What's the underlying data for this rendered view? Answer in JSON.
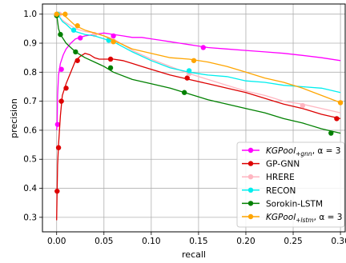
{
  "chart_data": {
    "type": "line",
    "xlabel": "recall",
    "ylabel": "precision",
    "xlim": [
      -0.015,
      0.305
    ],
    "ylim": [
      0.25,
      1.035
    ],
    "xticks": [
      0.0,
      0.05,
      0.1,
      0.15,
      0.2,
      0.25,
      0.3
    ],
    "xtick_labels": [
      "0.00",
      "0.05",
      "0.10",
      "0.15",
      "0.20",
      "0.25",
      "0.30"
    ],
    "yticks": [
      0.3,
      0.4,
      0.5,
      0.6,
      0.7,
      0.8,
      0.9,
      1.0
    ],
    "ytick_labels": [
      "0.3",
      "0.4",
      "0.5",
      "0.6",
      "0.7",
      "0.8",
      "0.9",
      "1.0"
    ],
    "grid": true,
    "legend_position": "lower-right",
    "series": [
      {
        "name": "KGPool+gnn, α = 3",
        "legend_main": "KGPool",
        "legend_sub": "+gnn",
        "legend_suffix": ", α = 3",
        "color": "#ff00ff",
        "x": [
          0.0,
          0.0005,
          0.001,
          0.002,
          0.004,
          0.007,
          0.01,
          0.015,
          0.02,
          0.025,
          0.03,
          0.04,
          0.05,
          0.06,
          0.07,
          0.08,
          0.09,
          0.1,
          0.11,
          0.12,
          0.13,
          0.14,
          0.15,
          0.16,
          0.18,
          0.2,
          0.22,
          0.24,
          0.26,
          0.28,
          0.3
        ],
        "y": [
          0.6,
          0.62,
          0.72,
          0.79,
          0.83,
          0.86,
          0.88,
          0.9,
          0.915,
          0.92,
          0.925,
          0.93,
          0.935,
          0.93,
          0.925,
          0.92,
          0.92,
          0.915,
          0.91,
          0.905,
          0.9,
          0.895,
          0.89,
          0.885,
          0.88,
          0.875,
          0.87,
          0.865,
          0.858,
          0.85,
          0.84
        ],
        "markers_x": [
          0.001,
          0.005,
          0.025,
          0.06,
          0.155
        ],
        "markers_y": [
          0.62,
          0.81,
          0.918,
          0.925,
          0.885
        ]
      },
      {
        "name": "GP-GNN",
        "color": "#dd0000",
        "x": [
          0.0,
          0.0005,
          0.001,
          0.002,
          0.004,
          0.006,
          0.01,
          0.015,
          0.02,
          0.025,
          0.03,
          0.035,
          0.04,
          0.045,
          0.05,
          0.055,
          0.06,
          0.07,
          0.08,
          0.09,
          0.1,
          0.12,
          0.14,
          0.16,
          0.18,
          0.2,
          0.22,
          0.24,
          0.26,
          0.28,
          0.3
        ],
        "y": [
          0.29,
          0.39,
          0.48,
          0.55,
          0.65,
          0.72,
          0.76,
          0.8,
          0.84,
          0.855,
          0.865,
          0.86,
          0.85,
          0.845,
          0.845,
          0.845,
          0.845,
          0.84,
          0.83,
          0.82,
          0.81,
          0.79,
          0.775,
          0.76,
          0.745,
          0.73,
          0.71,
          0.69,
          0.675,
          0.655,
          0.64
        ],
        "markers_x": [
          0.0005,
          0.002,
          0.005,
          0.01,
          0.022,
          0.057,
          0.138,
          0.296
        ],
        "markers_y": [
          0.39,
          0.54,
          0.7,
          0.745,
          0.84,
          0.845,
          0.78,
          0.64
        ]
      },
      {
        "name": "HRERE",
        "color": "#ffb6c1",
        "x": [
          0.0,
          0.003,
          0.006,
          0.01,
          0.015,
          0.02,
          0.03,
          0.04,
          0.05,
          0.06,
          0.08,
          0.1,
          0.12,
          0.14,
          0.16,
          0.18,
          0.2,
          0.22,
          0.24,
          0.26,
          0.28,
          0.3
        ],
        "y": [
          1.0,
          0.99,
          0.98,
          0.97,
          0.96,
          0.95,
          0.94,
          0.935,
          0.925,
          0.915,
          0.875,
          0.845,
          0.82,
          0.795,
          0.775,
          0.755,
          0.735,
          0.72,
          0.7,
          0.69,
          0.675,
          0.66
        ],
        "markers_x": [
          0.003,
          0.04,
          0.14,
          0.26
        ],
        "markers_y": [
          1.0,
          0.93,
          0.795,
          0.685
        ]
      },
      {
        "name": "RECON",
        "color": "#00eeee",
        "x": [
          0.0,
          0.003,
          0.006,
          0.01,
          0.015,
          0.02,
          0.03,
          0.04,
          0.05,
          0.06,
          0.08,
          0.1,
          0.12,
          0.14,
          0.16,
          0.18,
          0.2,
          0.22,
          0.24,
          0.26,
          0.28,
          0.3
        ],
        "y": [
          1.0,
          0.99,
          0.975,
          0.965,
          0.95,
          0.94,
          0.93,
          0.925,
          0.915,
          0.905,
          0.87,
          0.84,
          0.815,
          0.8,
          0.79,
          0.785,
          0.77,
          0.765,
          0.755,
          0.75,
          0.745,
          0.73
        ],
        "markers_x": [
          0.001,
          0.018,
          0.055,
          0.14
        ],
        "markers_y": [
          1.0,
          0.945,
          0.91,
          0.805
        ]
      },
      {
        "name": "Sorokin-LSTM",
        "color": "#008000",
        "x": [
          0.0,
          0.002,
          0.004,
          0.007,
          0.01,
          0.015,
          0.02,
          0.03,
          0.04,
          0.05,
          0.06,
          0.08,
          0.1,
          0.12,
          0.14,
          0.16,
          0.18,
          0.2,
          0.22,
          0.24,
          0.26,
          0.28,
          0.3
        ],
        "y": [
          1.0,
          0.95,
          0.93,
          0.915,
          0.9,
          0.885,
          0.87,
          0.85,
          0.835,
          0.82,
          0.8,
          0.775,
          0.76,
          0.745,
          0.725,
          0.705,
          0.69,
          0.675,
          0.66,
          0.64,
          0.625,
          0.605,
          0.59
        ],
        "markers_x": [
          0.0,
          0.004,
          0.02,
          0.057,
          0.135,
          0.29
        ],
        "markers_y": [
          0.995,
          0.93,
          0.87,
          0.815,
          0.73,
          0.59
        ]
      },
      {
        "name": "KGPool+lstm, α = 3",
        "legend_main": "KGPool",
        "legend_sub": "+lstm",
        "legend_suffix": ", α = 3",
        "color": "#ffa500",
        "x": [
          0.0,
          0.003,
          0.006,
          0.01,
          0.015,
          0.02,
          0.03,
          0.04,
          0.05,
          0.06,
          0.08,
          0.1,
          0.12,
          0.14,
          0.16,
          0.18,
          0.2,
          0.22,
          0.24,
          0.26,
          0.28,
          0.3
        ],
        "y": [
          1.0,
          1.0,
          1.0,
          0.99,
          0.975,
          0.96,
          0.945,
          0.935,
          0.925,
          0.91,
          0.88,
          0.865,
          0.85,
          0.845,
          0.835,
          0.82,
          0.8,
          0.78,
          0.765,
          0.745,
          0.72,
          0.695
        ],
        "markers_x": [
          0.0,
          0.009,
          0.022,
          0.06,
          0.145,
          0.3
        ],
        "markers_y": [
          1.0,
          1.0,
          0.96,
          0.905,
          0.84,
          0.695
        ]
      }
    ]
  }
}
